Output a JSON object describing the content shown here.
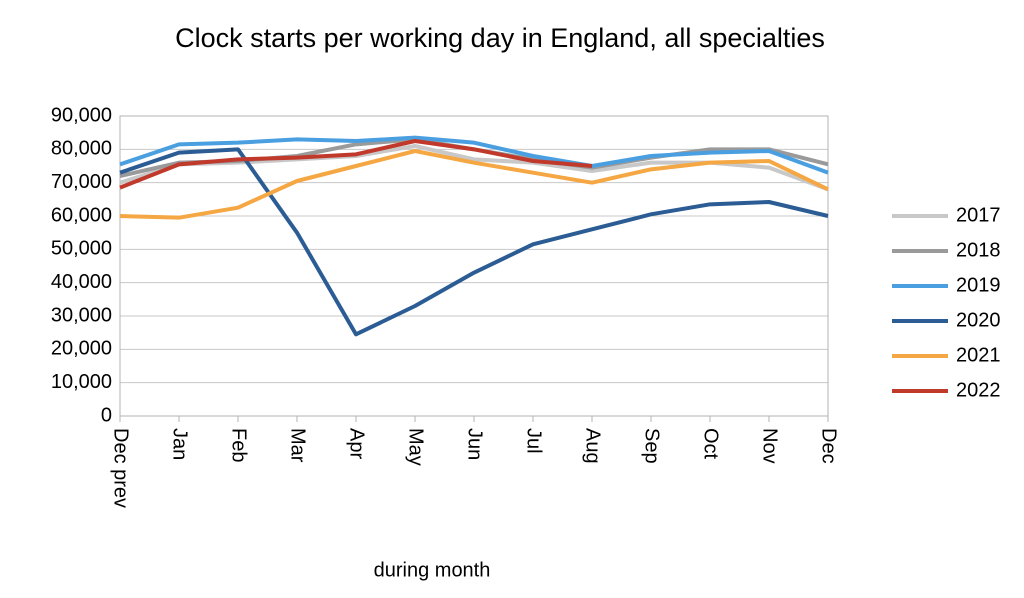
{
  "chart_data": {
    "type": "line",
    "title": "Clock starts per working day in England, all specialties",
    "x_label": "during  month",
    "categories": [
      "Dec prev",
      "Jan",
      "Feb",
      "Mar",
      "Apr",
      "May",
      "Jun",
      "Jul",
      "Aug",
      "Sep",
      "Oct",
      "Nov",
      "Dec"
    ],
    "ylim": [
      0,
      90000
    ],
    "yticks": [
      0,
      {
        "value": 10000,
        "label": "10,000"
      },
      {
        "value": 20000,
        "label": "20,000"
      },
      {
        "value": 30000,
        "label": "30,000"
      },
      {
        "value": 40000,
        "label": "40,000"
      },
      {
        "value": 50000,
        "label": "50,000"
      },
      {
        "value": 60000,
        "label": "60,000"
      },
      {
        "value": 70000,
        "label": "70,000"
      },
      {
        "value": 80000,
        "label": "80,000"
      },
      {
        "value": 90000,
        "label": "90,000"
      }
    ],
    "grid": true,
    "legend": "right",
    "series": [
      {
        "name": "2017",
        "color": "#c8c8c8",
        "values": [
          70000,
          75500,
          76000,
          77000,
          78000,
          81000,
          77000,
          76000,
          73500,
          76000,
          76000,
          74500,
          68000
        ]
      },
      {
        "name": "2018",
        "color": "#9a9a9a",
        "values": [
          72000,
          76000,
          76500,
          78000,
          81500,
          83000,
          80000,
          77000,
          74500,
          77500,
          80000,
          80000,
          75500
        ]
      },
      {
        "name": "2019",
        "color": "#4a9fe0",
        "values": [
          75500,
          81500,
          82000,
          83000,
          82500,
          83500,
          82000,
          78000,
          75000,
          78000,
          79000,
          79500,
          73000
        ]
      },
      {
        "name": "2020",
        "color": "#2b5d94",
        "values": [
          73000,
          79000,
          80000,
          55000,
          24500,
          33000,
          43000,
          51500,
          56000,
          60500,
          63500,
          64200,
          60000
        ]
      },
      {
        "name": "2021",
        "color": "#f4a742",
        "values": [
          60000,
          59500,
          62500,
          70500,
          75000,
          79500,
          76000,
          73000,
          70000,
          74000,
          76000,
          76500,
          68000
        ]
      },
      {
        "name": "2022",
        "color": "#c0392b",
        "values": [
          68500,
          75500,
          77000,
          77500,
          78500,
          82500,
          80000,
          76500,
          75000,
          null,
          null,
          null,
          null
        ]
      }
    ]
  }
}
